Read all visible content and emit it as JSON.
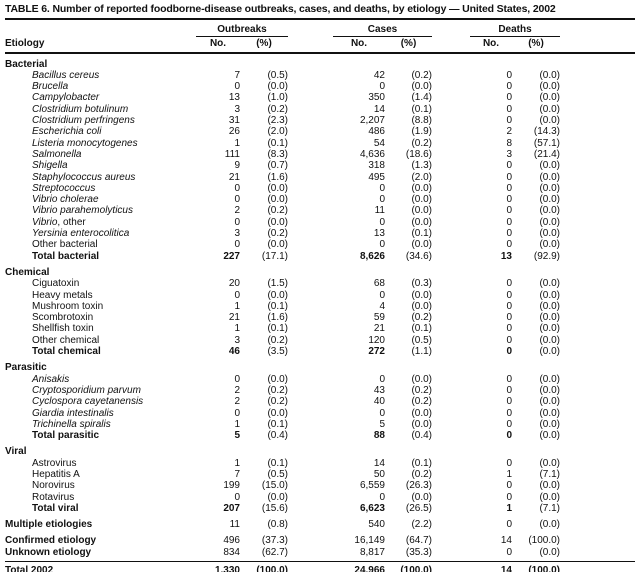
{
  "header": {
    "title": "TABLE 6. Number of reported foodborne-disease outbreaks, cases, and deaths, by etiology — United States, 2002",
    "etiology_label": "Etiology",
    "groups": [
      {
        "label": "Outbreaks",
        "no": "No.",
        "pct": "(%)"
      },
      {
        "label": "Cases",
        "no": "No.",
        "pct": "(%)"
      },
      {
        "label": "Deaths",
        "no": "No.",
        "pct": "(%)"
      }
    ]
  },
  "sections": [
    {
      "name": "Bacterial",
      "rows": [
        {
          "label": "Bacillus cereus",
          "italic": true,
          "v": [
            "7",
            "(0.5)",
            "42",
            "(0.2)",
            "0",
            "(0.0)"
          ]
        },
        {
          "label": "Brucella",
          "italic": true,
          "v": [
            "0",
            "(0.0)",
            "0",
            "(0.0)",
            "0",
            "(0.0)"
          ]
        },
        {
          "label": "Campylobacter",
          "italic": true,
          "v": [
            "13",
            "(1.0)",
            "350",
            "(1.4)",
            "0",
            "(0.0)"
          ]
        },
        {
          "label": "Clostridium botulinum",
          "italic": true,
          "v": [
            "3",
            "(0.2)",
            "14",
            "(0.1)",
            "0",
            "(0.0)"
          ]
        },
        {
          "label": "Clostridium perfringens",
          "italic": true,
          "v": [
            "31",
            "(2.3)",
            "2,207",
            "(8.8)",
            "0",
            "(0.0)"
          ]
        },
        {
          "label": "Escherichia coli",
          "italic": true,
          "v": [
            "26",
            "(2.0)",
            "486",
            "(1.9)",
            "2",
            "(14.3)"
          ]
        },
        {
          "label": "Listeria monocytogenes",
          "italic": true,
          "v": [
            "1",
            "(0.1)",
            "54",
            "(0.2)",
            "8",
            "(57.1)"
          ]
        },
        {
          "label": "Salmonella",
          "italic": true,
          "v": [
            "111",
            "(8.3)",
            "4,636",
            "(18.6)",
            "3",
            "(21.4)"
          ]
        },
        {
          "label": "Shigella",
          "italic": true,
          "v": [
            "9",
            "(0.7)",
            "318",
            "(1.3)",
            "0",
            "(0.0)"
          ]
        },
        {
          "label": "Staphylococcus aureus",
          "italic": true,
          "v": [
            "21",
            "(1.6)",
            "495",
            "(2.0)",
            "0",
            "(0.0)"
          ]
        },
        {
          "label": "Streptococcus",
          "italic": true,
          "v": [
            "0",
            "(0.0)",
            "0",
            "(0.0)",
            "0",
            "(0.0)"
          ]
        },
        {
          "label": "Vibrio cholerae",
          "italic": true,
          "v": [
            "0",
            "(0.0)",
            "0",
            "(0.0)",
            "0",
            "(0.0)"
          ]
        },
        {
          "label": "Vibrio parahemolyticus",
          "italic": true,
          "v": [
            "2",
            "(0.2)",
            "11",
            "(0.0)",
            "0",
            "(0.0)"
          ]
        },
        {
          "label_segments": [
            {
              "text": "Vibrio",
              "italic": true
            },
            {
              "text": ", other",
              "italic": false
            }
          ],
          "v": [
            "0",
            "(0.0)",
            "0",
            "(0.0)",
            "0",
            "(0.0)"
          ]
        },
        {
          "label": "Yersinia enterocolitica",
          "italic": true,
          "v": [
            "3",
            "(0.2)",
            "13",
            "(0.1)",
            "0",
            "(0.0)"
          ]
        },
        {
          "label": "Other bacterial",
          "italic": false,
          "v": [
            "0",
            "(0.0)",
            "0",
            "(0.0)",
            "0",
            "(0.0)"
          ]
        }
      ],
      "total": {
        "label": "Total bacterial",
        "v": [
          "227",
          "(17.1)",
          "8,626",
          "(34.6)",
          "13",
          "(92.9)"
        ]
      }
    },
    {
      "name": "Chemical",
      "rows": [
        {
          "label": "Ciguatoxin",
          "italic": false,
          "v": [
            "20",
            "(1.5)",
            "68",
            "(0.3)",
            "0",
            "(0.0)"
          ]
        },
        {
          "label": "Heavy metals",
          "italic": false,
          "v": [
            "0",
            "(0.0)",
            "0",
            "(0.0)",
            "0",
            "(0.0)"
          ]
        },
        {
          "label": "Mushroom toxin",
          "italic": false,
          "v": [
            "1",
            "(0.1)",
            "4",
            "(0.0)",
            "0",
            "(0.0)"
          ]
        },
        {
          "label": "Scombrotoxin",
          "italic": false,
          "v": [
            "21",
            "(1.6)",
            "59",
            "(0.2)",
            "0",
            "(0.0)"
          ]
        },
        {
          "label": "Shellfish toxin",
          "italic": false,
          "v": [
            "1",
            "(0.1)",
            "21",
            "(0.1)",
            "0",
            "(0.0)"
          ]
        },
        {
          "label": "Other chemical",
          "italic": false,
          "v": [
            "3",
            "(0.2)",
            "120",
            "(0.5)",
            "0",
            "(0.0)"
          ]
        }
      ],
      "total": {
        "label": "Total chemical",
        "v": [
          "46",
          "(3.5)",
          "272",
          "(1.1)",
          "0",
          "(0.0)"
        ]
      }
    },
    {
      "name": "Parasitic",
      "rows": [
        {
          "label": "Anisakis",
          "italic": true,
          "v": [
            "0",
            "(0.0)",
            "0",
            "(0.0)",
            "0",
            "(0.0)"
          ]
        },
        {
          "label": "Cryptosporidium parvum",
          "italic": true,
          "v": [
            "2",
            "(0.2)",
            "43",
            "(0.2)",
            "0",
            "(0.0)"
          ]
        },
        {
          "label": "Cyclospora cayetanensis",
          "italic": true,
          "v": [
            "2",
            "(0.2)",
            "40",
            "(0.2)",
            "0",
            "(0.0)"
          ]
        },
        {
          "label": "Giardia intestinalis",
          "italic": true,
          "v": [
            "0",
            "(0.0)",
            "0",
            "(0.0)",
            "0",
            "(0.0)"
          ]
        },
        {
          "label": "Trichinella spiralis",
          "italic": true,
          "v": [
            "1",
            "(0.1)",
            "5",
            "(0.0)",
            "0",
            "(0.0)"
          ]
        }
      ],
      "total": {
        "label": "Total parasitic",
        "v": [
          "5",
          "(0.4)",
          "88",
          "(0.4)",
          "0",
          "(0.0)"
        ]
      }
    },
    {
      "name": "Viral",
      "rows": [
        {
          "label": "Astrovirus",
          "italic": false,
          "v": [
            "1",
            "(0.1)",
            "14",
            "(0.1)",
            "0",
            "(0.0)"
          ]
        },
        {
          "label": "Hepatitis A",
          "italic": false,
          "v": [
            "7",
            "(0.5)",
            "50",
            "(0.2)",
            "1",
            "(7.1)"
          ]
        },
        {
          "label": "Norovirus",
          "italic": false,
          "v": [
            "199",
            "(15.0)",
            "6,559",
            "(26.3)",
            "0",
            "(0.0)"
          ]
        },
        {
          "label": "Rotavirus",
          "italic": false,
          "v": [
            "0",
            "(0.0)",
            "0",
            "(0.0)",
            "0",
            "(0.0)"
          ]
        }
      ],
      "total": {
        "label": "Total viral",
        "v": [
          "207",
          "(15.6)",
          "6,623",
          "(26.5)",
          "1",
          "(7.1)"
        ]
      }
    }
  ],
  "footer_groups": [
    [
      {
        "label": "Multiple etiologies",
        "v": [
          "11",
          "(0.8)",
          "540",
          "(2.2)",
          "0",
          "(0.0)"
        ]
      }
    ],
    [
      {
        "label": "Confirmed etiology",
        "v": [
          "496",
          "(37.3)",
          "16,149",
          "(64.7)",
          "14",
          "(100.0)"
        ]
      },
      {
        "label": "Unknown etiology",
        "v": [
          "834",
          "(62.7)",
          "8,817",
          "(35.3)",
          "0",
          "(0.0)"
        ]
      }
    ]
  ],
  "grand_total": {
    "label": "Total 2002",
    "v": [
      "1,330",
      "(100.0)",
      "24,966",
      "(100.0)",
      "14",
      "(100.0)"
    ]
  }
}
